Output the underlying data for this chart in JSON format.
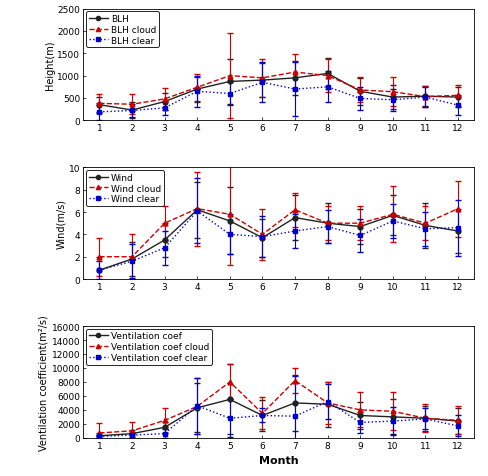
{
  "months": [
    1,
    2,
    3,
    4,
    5,
    6,
    7,
    8,
    9,
    10,
    11,
    12
  ],
  "blh_mean": [
    350,
    230,
    420,
    700,
    870,
    900,
    950,
    1050,
    650,
    520,
    540,
    520
  ],
  "blh_cloud": [
    380,
    360,
    480,
    740,
    1000,
    950,
    1080,
    1000,
    680,
    640,
    530,
    560
  ],
  "blh_clear": [
    190,
    220,
    280,
    650,
    600,
    850,
    700,
    750,
    490,
    460,
    520,
    340
  ],
  "blh_mean_err": [
    170,
    170,
    200,
    280,
    500,
    380,
    380,
    350,
    300,
    260,
    220,
    220
  ],
  "blh_cloud_err": [
    220,
    220,
    250,
    300,
    950,
    420,
    400,
    370,
    280,
    320,
    240,
    240
  ],
  "blh_clear_err": [
    190,
    150,
    150,
    350,
    250,
    450,
    600,
    350,
    250,
    250,
    230,
    230
  ],
  "blh_ylim": [
    0,
    2500
  ],
  "blh_yticks": [
    0,
    500,
    1000,
    1500,
    2000,
    2500
  ],
  "blh_ylabel": "Height(m)",
  "wind_mean": [
    0.8,
    1.8,
    3.5,
    6.2,
    5.2,
    3.7,
    5.5,
    5.0,
    4.7,
    5.7,
    4.8,
    4.3
  ],
  "wind_cloud": [
    2.0,
    2.0,
    5.0,
    6.3,
    5.8,
    4.0,
    6.2,
    5.0,
    5.0,
    5.8,
    5.0,
    6.3
  ],
  "wind_clear": [
    0.8,
    1.6,
    2.8,
    6.1,
    4.0,
    3.8,
    4.3,
    4.7,
    3.9,
    5.2,
    4.5,
    4.6
  ],
  "wind_mean_err": [
    1.2,
    1.5,
    1.5,
    2.5,
    3.0,
    1.7,
    2.0,
    1.8,
    1.6,
    1.8,
    2.0,
    2.0
  ],
  "wind_cloud_err": [
    1.7,
    2.0,
    1.5,
    3.3,
    4.5,
    2.3,
    1.5,
    1.5,
    1.5,
    2.5,
    1.5,
    2.5
  ],
  "wind_clear_err": [
    0.8,
    1.5,
    1.5,
    2.9,
    1.8,
    1.8,
    1.5,
    1.5,
    1.5,
    1.5,
    1.5,
    2.5
  ],
  "wind_ylim": [
    0,
    10
  ],
  "wind_yticks": [
    0,
    2,
    4,
    6,
    8,
    10
  ],
  "wind_ylabel": "Wind(m/s)",
  "vent_mean": [
    300,
    600,
    1500,
    4300,
    5500,
    3200,
    5000,
    4800,
    3200,
    3000,
    2800,
    2400
  ],
  "vent_cloud": [
    700,
    1000,
    2500,
    4500,
    8000,
    3500,
    8200,
    5000,
    4000,
    3800,
    2800,
    2500
  ],
  "vent_clear": [
    200,
    400,
    600,
    4600,
    2800,
    3200,
    3100,
    5200,
    2200,
    2400,
    2700,
    1700
  ],
  "vent_mean_err": [
    400,
    500,
    800,
    3500,
    5000,
    2200,
    4000,
    3200,
    2000,
    2500,
    1800,
    1800
  ],
  "vent_cloud_err": [
    1400,
    1200,
    1800,
    4000,
    2500,
    2300,
    1800,
    3000,
    2500,
    2700,
    2000,
    2000
  ],
  "vent_clear_err": [
    200,
    500,
    600,
    4000,
    2700,
    1000,
    5800,
    2500,
    1500,
    2000,
    1500,
    1500
  ],
  "vent_ylim": [
    0,
    16000
  ],
  "vent_yticks": [
    0,
    2000,
    4000,
    6000,
    8000,
    10000,
    12000,
    14000,
    16000
  ],
  "vent_ylabel": "Ventilation coefficient(m²/s)",
  "color_mean": "#222222",
  "color_cloud": "#cc0000",
  "color_clear": "#0000cc",
  "xlabel": "Month",
  "tick_fontsize": 6.5,
  "label_fontsize": 7,
  "legend_fontsize": 6.5
}
